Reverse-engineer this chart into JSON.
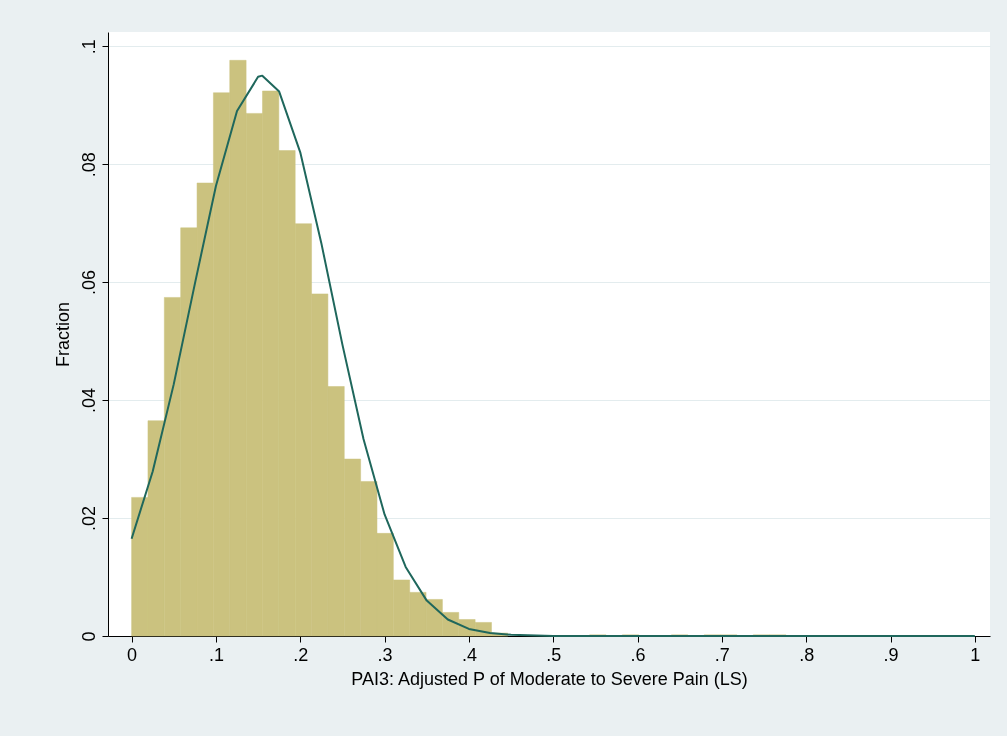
{
  "chart_data": {
    "type": "histogram",
    "xlabel": "PAI3: Adjusted P of Moderate to Severe Pain (LS)",
    "ylabel": "Fraction",
    "bins": [
      0,
      0.0194,
      0.0388,
      0.0582,
      0.0776,
      0.097,
      0.1164,
      0.1358,
      0.1552,
      0.1746,
      0.194,
      0.2134,
      0.2328,
      0.2522,
      0.2716,
      0.291,
      0.3104,
      0.3298,
      0.3492,
      0.3686,
      0.388,
      0.4074,
      0.4268,
      0.4462,
      0.4656,
      0.485,
      0.5044,
      0.5238,
      0.5432,
      0.5626,
      0.582,
      0.6014,
      0.6208,
      0.6402,
      0.6596,
      0.679,
      0.6984,
      0.7178,
      0.7372,
      0.7566,
      0.776
    ],
    "values": [
      0.0235,
      0.0365,
      0.0574,
      0.0692,
      0.0768,
      0.0921,
      0.0976,
      0.0886,
      0.0924,
      0.0823,
      0.0699,
      0.058,
      0.0423,
      0.03,
      0.0262,
      0.0174,
      0.0095,
      0.0074,
      0.0062,
      0.004,
      0.0028,
      0.0023,
      0.0005,
      null,
      null,
      null,
      null,
      null,
      0.0002,
      0,
      0.0002,
      0,
      0,
      0.0002,
      0,
      0.0002,
      0.0002,
      0,
      0.0002,
      0.0002
    ],
    "color": "#cbc27f",
    "series": [
      {
        "type": "line",
        "color": "#1f675c",
        "x": [
          0,
          0.025,
          0.05,
          0.075,
          0.1,
          0.125,
          0.15,
          0.155,
          0.175,
          0.2,
          0.225,
          0.25,
          0.275,
          0.3,
          0.325,
          0.35,
          0.375,
          0.4,
          0.425,
          0.45,
          0.5,
          1
        ],
        "values": [
          0.0165,
          0.0279,
          0.0427,
          0.0597,
          0.0763,
          0.089,
          0.0948,
          0.095,
          0.0923,
          0.082,
          0.0666,
          0.0494,
          0.0334,
          0.0206,
          0.0117,
          0.006,
          0.0028,
          0.0012,
          0.0005,
          0.0002,
          0,
          0
        ]
      }
    ],
    "xlim": [
      -0.028,
      1.018
    ],
    "ylim": [
      0,
      0.1024
    ],
    "xticks": [
      0,
      {
        "value": 0.1,
        "label": ".1"
      },
      {
        "value": 0.2,
        "label": ".2"
      },
      {
        "value": 0.3,
        "label": ".3"
      },
      {
        "value": 0.4,
        "label": ".4"
      },
      {
        "value": 0.5,
        "label": ".5"
      },
      {
        "value": 0.6,
        "label": ".6"
      },
      {
        "value": 0.7,
        "label": ".7"
      },
      {
        "value": 0.8,
        "label": ".8"
      },
      {
        "value": 0.9,
        "label": ".9"
      },
      1
    ],
    "yticks": [
      0,
      {
        "value": 0.02,
        "label": ".02"
      },
      {
        "value": 0.04,
        "label": ".04"
      },
      {
        "value": 0.06,
        "label": ".06"
      },
      {
        "value": 0.08,
        "label": ".08"
      },
      {
        "value": 0.1,
        "label": ".1"
      }
    ],
    "grid": "y"
  }
}
